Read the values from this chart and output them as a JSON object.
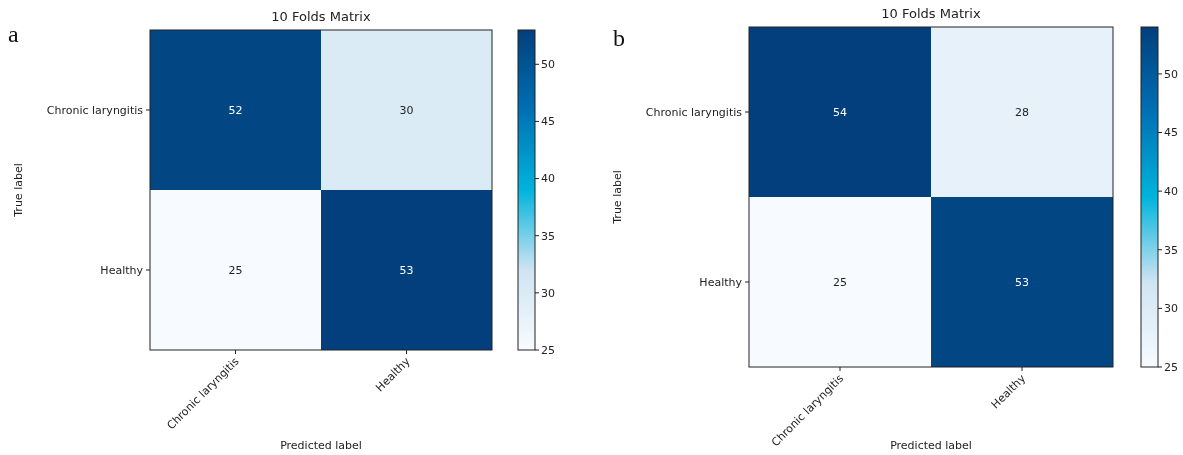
{
  "chart_data": [
    {
      "type": "heatmap",
      "title": "10 Folds Matrix",
      "xlabel": "Predicted label",
      "ylabel": "True label",
      "annotations": [
        "a"
      ],
      "categories": [
        "Chronic laryngitis",
        "Healthy"
      ],
      "y_categories": [
        "Chronic laryngitis",
        "Healthy"
      ],
      "cells": [
        [
          52,
          30
        ],
        [
          25,
          53
        ]
      ],
      "data_labels": true,
      "clim": [
        25,
        53
      ],
      "cticks": [
        25,
        30,
        35,
        40,
        45,
        50
      ]
    },
    {
      "type": "heatmap",
      "title": "10 Folds Matrix",
      "xlabel": "Predicted label",
      "ylabel": "True label",
      "annotations": [
        "b"
      ],
      "categories": [
        "Chronic laryngitis",
        "Healthy"
      ],
      "y_categories": [
        "Chronic laryngitis",
        "Healthy"
      ],
      "cells": [
        [
          54,
          28
        ],
        [
          25,
          53
        ]
      ],
      "data_labels": true,
      "clim": [
        25,
        54
      ],
      "cticks": [
        25,
        30,
        35,
        40,
        45,
        50
      ]
    }
  ]
}
